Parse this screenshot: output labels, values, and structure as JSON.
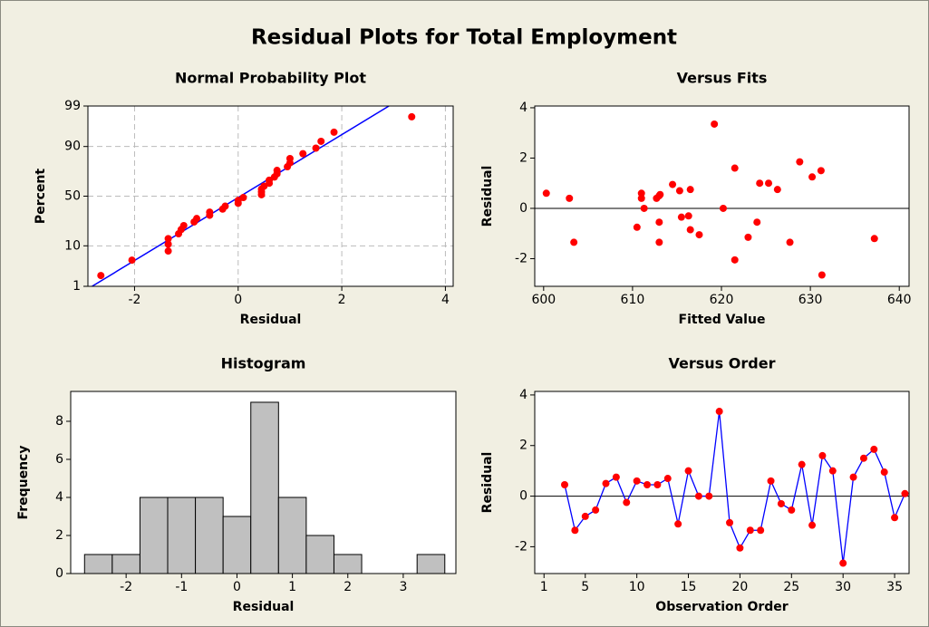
{
  "title": "Residual Plots for Total Employment",
  "chart_data": [
    {
      "type": "probability",
      "title": "Normal Probability Plot",
      "x_label": "Residual",
      "y_label": "Percent",
      "xlim": [
        -2.9,
        4.15
      ],
      "ylim": [
        1,
        99
      ],
      "xticks": [
        -2,
        0,
        2,
        4
      ],
      "yticks": [
        1,
        10,
        50,
        90,
        99
      ],
      "grid": true,
      "points": {
        "color": "#ff0000",
        "x": [
          -2.65,
          -2.05,
          -1.35,
          -1.35,
          -1.35,
          -1.15,
          -1.1,
          -1.05,
          -0.85,
          -0.8,
          -0.55,
          -0.55,
          -0.3,
          -0.25,
          0,
          0,
          0.1,
          0.45,
          0.45,
          0.45,
          0.5,
          0.6,
          0.6,
          0.7,
          0.75,
          0.75,
          0.95,
          1.0,
          1.0,
          1.25,
          1.5,
          1.6,
          1.85,
          3.35
        ],
        "values": [
          2.03,
          4.94,
          7.85,
          10.76,
          13.66,
          16.57,
          19.48,
          22.38,
          25.29,
          28.2,
          31.1,
          34.01,
          36.92,
          39.83,
          42.73,
          45.64,
          48.55,
          51.45,
          54.36,
          57.27,
          60.17,
          63.08,
          65.99,
          68.9,
          71.8,
          74.71,
          77.62,
          80.52,
          83.43,
          86.34,
          89.24,
          92.15,
          95.06,
          97.97
        ]
      },
      "fit_line": {
        "color": "#0000ff",
        "x": [
          -2.82,
          2.91
        ],
        "values": [
          1,
          99
        ]
      }
    },
    {
      "type": "scatter",
      "title": "Versus Fits",
      "x_label": "Fitted Value",
      "y_label": "Residual",
      "xlim": [
        599,
        641.1
      ],
      "ylim": [
        -3.1,
        4.07
      ],
      "xticks": [
        600,
        610,
        620,
        630,
        640
      ],
      "yticks": [
        -2,
        0,
        2,
        4
      ],
      "color": "#ff0000",
      "x": [
        600.3,
        602.9,
        603.4,
        610.5,
        611,
        611,
        611.3,
        612.7,
        613,
        613.1,
        613,
        613,
        614.5,
        615.3,
        615.5,
        616.3,
        616.5,
        616.5,
        617.5,
        619.2,
        620.2,
        621.5,
        621.5,
        623,
        624,
        624.3,
        625.3,
        626.3,
        627.7,
        628.8,
        630.2,
        631.2,
        631.3,
        637.2
      ],
      "values": [
        0.6,
        0.4,
        -1.35,
        -0.75,
        0.6,
        0.4,
        0,
        0.4,
        0.5,
        0.55,
        -0.55,
        -1.35,
        0.95,
        0.7,
        -0.35,
        -0.3,
        0.75,
        -0.85,
        -1.05,
        3.35,
        0,
        1.6,
        -2.05,
        -1.15,
        -0.55,
        1.0,
        1.0,
        0.75,
        -1.35,
        1.85,
        1.25,
        1.5,
        -2.65,
        -1.2
      ]
    },
    {
      "type": "histogram",
      "title": "Histogram",
      "x_label": "Residual",
      "y_label": "Frequency",
      "xlim": [
        -3.0,
        3.95
      ],
      "ylim": [
        0,
        9.57
      ],
      "xticks": [
        -2,
        -1,
        0,
        1,
        2,
        3
      ],
      "yticks": [
        0,
        2,
        4,
        6,
        8
      ],
      "color": "#c0c0c0",
      "bins": [
        -2.75,
        -2.25,
        -1.75,
        -1.25,
        -0.75,
        -0.25,
        0.25,
        0.75,
        1.25,
        1.75,
        2.25,
        2.75,
        3.25,
        3.75
      ],
      "values": [
        1,
        1,
        4,
        4,
        4,
        3,
        9,
        4,
        2,
        1,
        0,
        0,
        1
      ]
    },
    {
      "type": "line",
      "title": "Versus Order",
      "x_label": "Observation Order",
      "y_label": "Residual",
      "xlim": [
        0.1,
        36.4
      ],
      "ylim": [
        -3.06,
        4.14
      ],
      "xticks": [
        1,
        5,
        10,
        15,
        20,
        25,
        30,
        35
      ],
      "yticks": [
        -2,
        0,
        2,
        4
      ],
      "color": "#0000ff",
      "marker_color": "#ff0000",
      "x": [
        3,
        4,
        5,
        6,
        7,
        8,
        9,
        10,
        11,
        12,
        13,
        14,
        15,
        16,
        17,
        18,
        19,
        20,
        21,
        22,
        23,
        24,
        25,
        26,
        27,
        28,
        29,
        30,
        31,
        32,
        33,
        34,
        35,
        36
      ],
      "values": [
        0.45,
        -1.35,
        -0.8,
        -0.55,
        0.5,
        0.75,
        -0.25,
        0.6,
        0.45,
        0.45,
        0.7,
        -1.1,
        1.0,
        0,
        0,
        3.35,
        -1.05,
        -2.05,
        -1.35,
        -1.35,
        0.6,
        -0.3,
        -0.55,
        1.25,
        -1.15,
        1.6,
        1.0,
        -2.65,
        0.75,
        1.5,
        1.85,
        0.95,
        -0.85,
        0.1
      ]
    }
  ]
}
